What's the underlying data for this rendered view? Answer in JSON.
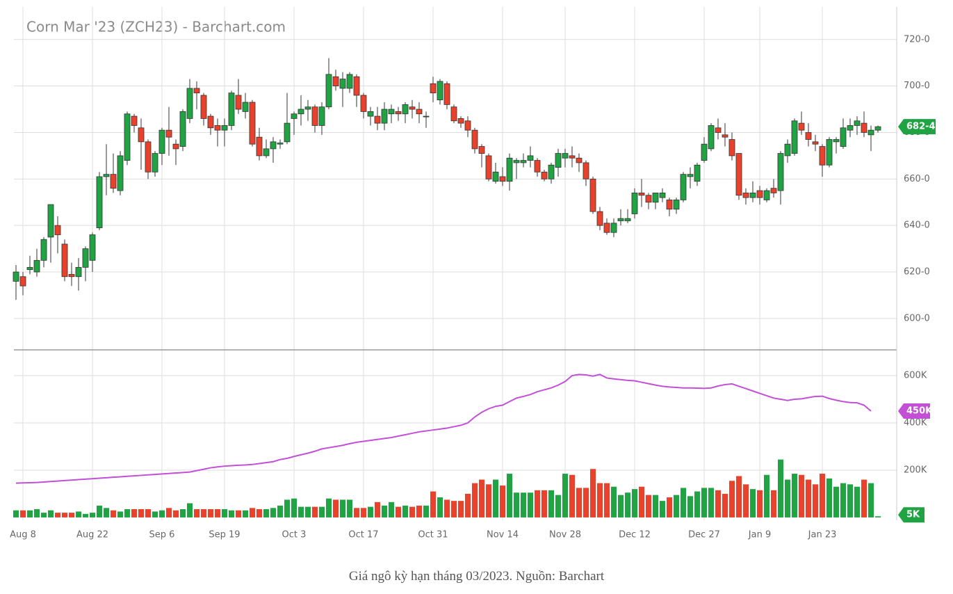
{
  "chart_data": {
    "type": "candlestick",
    "title": "Corn Mar '23 (ZCH23) - Barchart.com",
    "categories": [
      null,
      "Aug 8",
      null,
      null,
      null,
      null,
      null,
      null,
      null,
      null,
      null,
      "Aug 22",
      null,
      null,
      null,
      null,
      null,
      null,
      null,
      null,
      null,
      "Sep 6",
      null,
      null,
      null,
      null,
      null,
      null,
      null,
      null,
      "Sep 19",
      null,
      null,
      null,
      null,
      null,
      null,
      null,
      null,
      null,
      "Oct 3",
      null,
      null,
      null,
      null,
      null,
      null,
      null,
      null,
      null,
      "Oct 17",
      null,
      null,
      null,
      null,
      null,
      null,
      null,
      null,
      null,
      "Oct 31",
      null,
      null,
      null,
      null,
      null,
      null,
      null,
      null,
      null,
      "Nov 14",
      null,
      null,
      null,
      null,
      null,
      null,
      null,
      null,
      "Nov 28",
      null,
      null,
      null,
      null,
      null,
      null,
      null,
      null,
      null,
      "Dec 12",
      null,
      null,
      null,
      null,
      null,
      null,
      null,
      null,
      null,
      "Dec 27",
      null,
      null,
      null,
      null,
      null,
      null,
      null,
      "Jan 9",
      null,
      null,
      null,
      null,
      null,
      null,
      null,
      null,
      "Jan 23",
      null,
      null,
      null,
      null,
      null,
      null,
      null,
      null
    ],
    "open": [
      616,
      618,
      621,
      620,
      625,
      635,
      640,
      632,
      619,
      618,
      622,
      625,
      639,
      661,
      662,
      655,
      668,
      687,
      682,
      676,
      663,
      671,
      681,
      675,
      674,
      686,
      699,
      696,
      687,
      683,
      681,
      683,
      696,
      689,
      693,
      678,
      670,
      673,
      675,
      676,
      686,
      688,
      690,
      691,
      683,
      691,
      704,
      699,
      699,
      704,
      696,
      687,
      687,
      684,
      688,
      689,
      688,
      691,
      690,
      687,
      701,
      694,
      701,
      691,
      686,
      685,
      681,
      674,
      670,
      659,
      661,
      659,
      667,
      667,
      668,
      668,
      663,
      660,
      665,
      669,
      670,
      669,
      667,
      660,
      646,
      641,
      637,
      642,
      642,
      645,
      654,
      653,
      650,
      652,
      651,
      647,
      651,
      661,
      659,
      668,
      673,
      682,
      679,
      677,
      671,
      654,
      652,
      655,
      651,
      656,
      655,
      670,
      671,
      684,
      680,
      676,
      674,
      666,
      676,
      674,
      681,
      683,
      684,
      679,
      681
    ],
    "high": [
      623,
      620,
      627,
      630,
      635,
      649,
      644,
      634,
      624,
      626,
      631,
      637,
      663,
      675,
      671,
      672,
      689,
      688,
      686,
      677,
      672,
      682,
      691,
      677,
      690,
      703,
      702,
      697,
      688,
      686,
      686,
      698,
      703,
      697,
      694,
      682,
      677,
      678,
      677,
      697,
      689,
      696,
      694,
      692,
      693,
      712,
      707,
      706,
      706,
      705,
      697,
      691,
      691,
      693,
      692,
      691,
      693,
      694,
      693,
      689,
      704,
      703,
      702,
      692,
      687,
      687,
      682,
      675,
      671,
      667,
      665,
      671,
      669,
      671,
      674,
      669,
      664,
      667,
      673,
      673,
      674,
      671,
      668,
      661,
      648,
      643,
      643,
      647,
      647,
      656,
      660,
      654,
      654,
      656,
      652,
      652,
      663,
      665,
      667,
      678,
      684,
      686,
      684,
      680,
      671,
      656,
      659,
      657,
      656,
      660,
      672,
      677,
      686,
      689,
      684,
      679,
      675,
      678,
      678,
      686,
      686,
      687,
      689,
      683,
      683
    ],
    "low": [
      608,
      610,
      619,
      618,
      622,
      624,
      628,
      616,
      614,
      612,
      616,
      620,
      638,
      653,
      654,
      653,
      666,
      680,
      664,
      660,
      661,
      666,
      670,
      666,
      672,
      684,
      690,
      683,
      679,
      674,
      674,
      681,
      688,
      686,
      674,
      668,
      669,
      667,
      673,
      675,
      679,
      683,
      685,
      680,
      679,
      690,
      698,
      691,
      697,
      691,
      686,
      683,
      681,
      681,
      684,
      685,
      684,
      686,
      684,
      682,
      693,
      692,
      690,
      684,
      682,
      678,
      671,
      665,
      659,
      658,
      657,
      655,
      660,
      665,
      665,
      661,
      659,
      658,
      661,
      665,
      665,
      663,
      657,
      645,
      638,
      636,
      635,
      640,
      641,
      643,
      648,
      647,
      647,
      650,
      644,
      645,
      650,
      656,
      657,
      667,
      672,
      677,
      674,
      668,
      651,
      649,
      650,
      649,
      650,
      652,
      649,
      667,
      670,
      679,
      674,
      672,
      661,
      665,
      671,
      673,
      678,
      679,
      678,
      672,
      680
    ],
    "close": [
      620,
      614,
      622,
      625,
      634,
      649,
      636,
      618,
      618,
      622,
      630,
      636,
      661,
      662,
      656,
      670,
      688,
      683,
      676,
      663,
      671,
      681,
      678,
      673,
      689,
      699,
      697,
      686,
      682,
      681,
      683,
      697,
      690,
      693,
      675,
      670,
      673,
      676,
      675.5,
      684,
      688,
      690,
      691,
      683,
      691,
      705,
      700,
      703,
      705,
      696,
      689,
      689,
      684,
      690,
      690,
      688,
      692,
      690,
      688,
      687,
      697,
      702,
      692,
      685,
      684,
      681,
      673,
      671,
      660,
      663,
      659,
      669,
      668,
      668,
      670,
      663,
      660,
      666,
      671,
      671,
      669,
      667,
      660,
      646,
      640,
      637,
      641,
      643,
      643,
      654,
      653,
      650,
      654,
      654,
      647,
      651,
      662,
      662,
      666,
      675,
      683,
      680,
      678,
      670,
      653,
      652,
      654,
      652,
      655,
      654,
      671,
      675,
      685,
      681,
      677,
      675,
      666,
      677,
      677,
      682,
      683,
      685,
      680,
      681,
      682.5
    ],
    "up_color": "#1fa343",
    "down_color": "#e8412c",
    "ylim": [
      586.5,
      734
    ],
    "yticks": [
      {
        "value": 600,
        "label": "600-0"
      },
      {
        "value": 620,
        "label": "620-0"
      },
      {
        "value": 640,
        "label": "640-0"
      },
      {
        "value": 660,
        "label": "660-0"
      },
      {
        "value": 680,
        "label": "680-0"
      },
      {
        "value": 700,
        "label": "700-0"
      },
      {
        "value": 720,
        "label": "720-0"
      }
    ],
    "grid": true,
    "last_price": {
      "value": 682.5,
      "label": "682-4"
    },
    "volume": {
      "type": "bar",
      "ylim": [
        -12,
        709
      ],
      "yticks": [
        {
          "value": 200,
          "label": "200K"
        },
        {
          "value": 400,
          "label": "400K"
        },
        {
          "value": 600,
          "label": "600K"
        }
      ],
      "values": [
        30,
        30,
        30,
        35,
        20,
        30,
        20,
        20,
        20,
        25,
        15,
        20,
        50,
        40,
        30,
        25,
        35,
        35,
        35,
        35,
        25,
        30,
        40,
        30,
        35,
        60,
        35,
        35,
        35,
        35,
        35,
        30,
        30,
        30,
        40,
        35,
        35,
        40,
        50,
        75,
        80,
        45,
        45,
        45,
        45,
        80,
        75,
        75,
        75,
        40,
        40,
        45,
        65,
        50,
        65,
        45,
        50,
        45,
        50,
        50,
        110,
        85,
        75,
        70,
        70,
        100,
        145,
        160,
        140,
        160,
        135,
        185,
        105,
        105,
        105,
        115,
        115,
        115,
        95,
        185,
        180,
        125,
        125,
        205,
        145,
        145,
        130,
        95,
        105,
        120,
        130,
        95,
        95,
        70,
        85,
        95,
        125,
        90,
        110,
        125,
        125,
        115,
        100,
        155,
        175,
        140,
        120,
        115,
        180,
        115,
        245,
        160,
        185,
        180,
        160,
        140,
        185,
        165,
        130,
        145,
        140,
        130,
        160,
        145,
        5
      ],
      "last_value_label": "5K"
    },
    "open_interest": {
      "type": "line",
      "color": "#c24fd6",
      "values": [
        145,
        146,
        147,
        148,
        150,
        152,
        154,
        156,
        158,
        160,
        162,
        164,
        166,
        168,
        170,
        172,
        174,
        176,
        178,
        180,
        182,
        184,
        186,
        188,
        190,
        192,
        198,
        204,
        210,
        214,
        217,
        219,
        221,
        222,
        224,
        228,
        232,
        236,
        245,
        250,
        258,
        265,
        272,
        280,
        290,
        295,
        300,
        305,
        312,
        318,
        322,
        326,
        330,
        334,
        338,
        344,
        350,
        356,
        362,
        366,
        370,
        374,
        378,
        384,
        390,
        400,
        425,
        445,
        460,
        470,
        475,
        490,
        505,
        512,
        520,
        532,
        540,
        548,
        560,
        575,
        600,
        605,
        603,
        598,
        605,
        590,
        586,
        583,
        580,
        578,
        572,
        566,
        560,
        555,
        552,
        550,
        548,
        548,
        547,
        546,
        548,
        556,
        562,
        565,
        555,
        545,
        535,
        525,
        515,
        505,
        500,
        495,
        500,
        502,
        507,
        512,
        513,
        503,
        496,
        490,
        486,
        485,
        475,
        450,
        null
      ],
      "last_value_label": "450K"
    }
  },
  "caption": "Giá ngô kỳ hạn tháng 03/2023. Nguồn: Barchart"
}
